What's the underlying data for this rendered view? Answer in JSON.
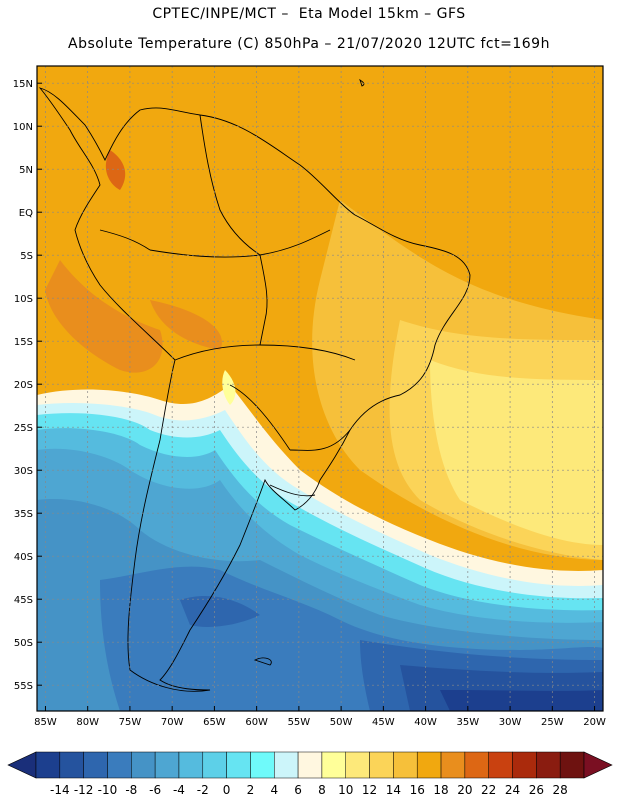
{
  "header": {
    "line1": "CPTEC/INPE/MCT –  Eta Model 15km – GFS",
    "line2": "Absolute Temperature (C) 850hPa – 21/07/2020 12UTC fct=169h"
  },
  "map": {
    "lat_labels": [
      "15N",
      "10N",
      "5N",
      "EQ",
      "5S",
      "10S",
      "15S",
      "20S",
      "25S",
      "30S",
      "35S",
      "40S",
      "45S",
      "50S",
      "55S"
    ],
    "lon_labels": [
      "85W",
      "80W",
      "75W",
      "70W",
      "65W",
      "60W",
      "55W",
      "50W",
      "45W",
      "40W",
      "35W",
      "30W",
      "25W",
      "20W"
    ],
    "lon_range": [
      -86,
      -19
    ],
    "lat_range": [
      17,
      -58
    ]
  },
  "colorbar": {
    "labels": [
      "-14",
      "-12",
      "-10",
      "-8",
      "-6",
      "-4",
      "-2",
      "0",
      "2",
      "4",
      "6",
      "8",
      "10",
      "12",
      "14",
      "16",
      "18",
      "20",
      "22",
      "24",
      "26",
      "28"
    ],
    "colors": [
      "#1c3f8e",
      "#25539e",
      "#2e66ae",
      "#3a7cbd",
      "#4593c6",
      "#4ea6d2",
      "#55bbde",
      "#5dd0e8",
      "#66e4f2",
      "#6ffafa",
      "#ccf5fa",
      "#fff7e0",
      "#ffff99",
      "#fde97a",
      "#fbd458",
      "#f6c03a",
      "#f1a80f",
      "#e98e1d",
      "#dd6714",
      "#c94110",
      "#aa2a0c",
      "#8a1c10",
      "#6e1210"
    ],
    "under_color": "#1a2f7a",
    "over_color": "#7a0f22"
  }
}
